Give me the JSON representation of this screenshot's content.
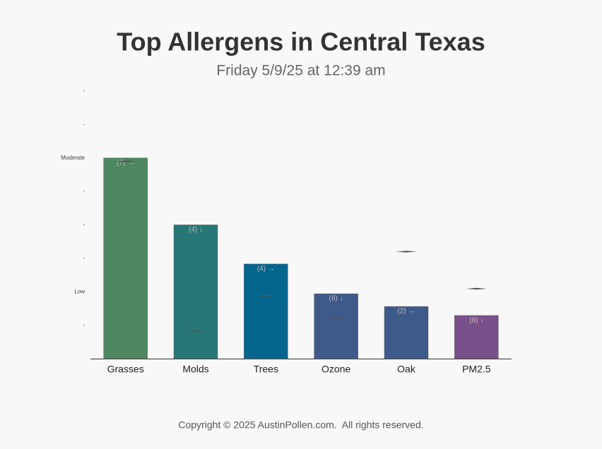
{
  "chart_data": {
    "type": "bar",
    "title": "Top Allergens in Central Texas",
    "subtitle": "Friday 5/9/25 at 12:39 am",
    "categories": [
      "Grasses",
      "Molds",
      "Trees",
      "Ozone",
      "Oak",
      "PM2.5"
    ],
    "values": [
      6.0,
      4.0,
      2.83,
      1.94,
      1.56,
      1.29
    ],
    "colors": [
      "#4e8760",
      "#277777",
      "#05668d",
      "#3d5a8a",
      "#3d5a8a",
      "#7a508a"
    ],
    "bar_labels": [
      "(7) →",
      "(4) ↓",
      "(4) →",
      "(6) ↓",
      "(2) →",
      "(8) ↓"
    ],
    "markers": {
      "color": "#555555",
      "values": [
        5.9,
        0.82,
        1.88,
        1.18,
        3.2,
        2.09
      ]
    },
    "ylim": [
      0,
      8
    ],
    "yticks": [
      {
        "value": 1,
        "label": "-"
      },
      {
        "value": 2,
        "label": "Low"
      },
      {
        "value": 3,
        "label": "-"
      },
      {
        "value": 4,
        "label": "-"
      },
      {
        "value": 5,
        "label": "-"
      },
      {
        "value": 6,
        "label": "Moderate"
      },
      {
        "value": 7,
        "label": "-"
      },
      {
        "value": 8,
        "label": "-"
      }
    ],
    "footer": "Copyright © 2025 AustinPollen.com.  All rights reserved."
  }
}
